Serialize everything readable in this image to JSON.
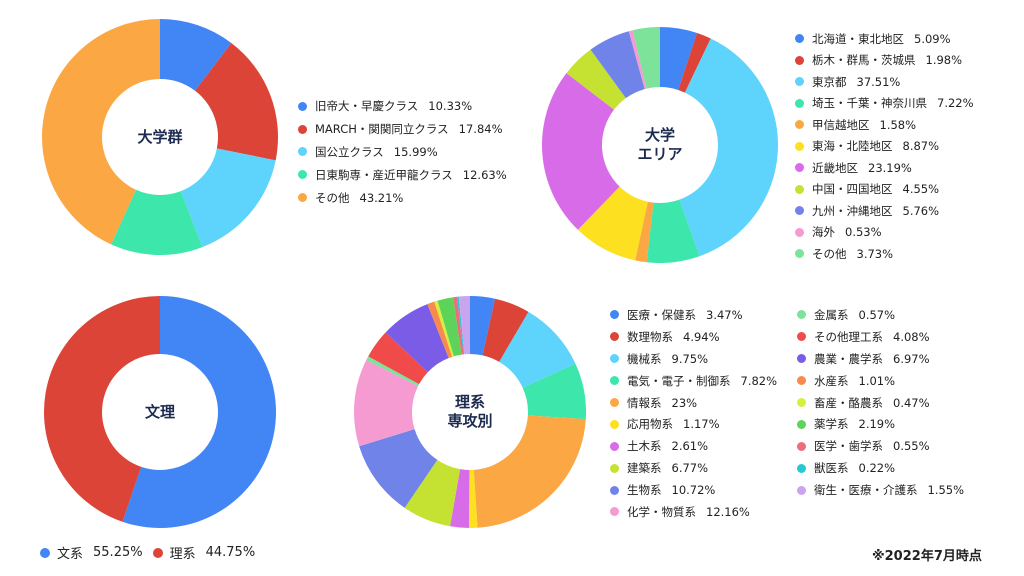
{
  "chart_data": [
    {
      "type": "pie",
      "variant": "donut",
      "title": "大学群",
      "center_label": [
        "大学群"
      ],
      "categories": [
        "旧帝大・早慶クラス",
        "MARCH・関関同立クラス",
        "国公立クラス",
        "日東駒専・産近甲龍クラス",
        "その他"
      ],
      "values": [
        10.33,
        17.84,
        15.99,
        12.63,
        43.21
      ],
      "value_labels": [
        "10.33%",
        "17.84%",
        "15.99%",
        "12.63%",
        "43.21%"
      ],
      "colors": [
        "#4285f4",
        "#db4437",
        "#5ed3fb",
        "#3de6aa",
        "#fba744"
      ],
      "legend_position": "right"
    },
    {
      "type": "pie",
      "variant": "donut",
      "title": "大学エリア",
      "center_label": [
        "大学",
        "エリア"
      ],
      "categories": [
        "北海道・東北地区",
        "栃木・群馬・茨城県",
        "東京都",
        "埼玉・千葉・神奈川県",
        "甲信越地区",
        "東海・北陸地区",
        "近畿地区",
        "中国・四国地区",
        "九州・沖縄地区",
        "海外",
        "その他"
      ],
      "values": [
        5.09,
        1.98,
        37.51,
        7.22,
        1.58,
        8.87,
        23.19,
        4.55,
        5.76,
        0.53,
        3.73
      ],
      "value_labels": [
        "5.09%",
        "1.98%",
        "37.51%",
        "7.22%",
        "1.58%",
        "8.87%",
        "23.19%",
        "4.55%",
        "5.76%",
        "0.53%",
        "3.73%"
      ],
      "colors": [
        "#4285f4",
        "#db4437",
        "#5ed3fb",
        "#3de6aa",
        "#fba744",
        "#fde020",
        "#d86ce8",
        "#c5e232",
        "#7083e8",
        "#f59bd2",
        "#7de39a"
      ],
      "legend_position": "right"
    },
    {
      "type": "pie",
      "variant": "donut",
      "title": "文理",
      "center_label": [
        "文理"
      ],
      "categories": [
        "文系",
        "理系"
      ],
      "values": [
        55.25,
        44.75
      ],
      "value_labels": [
        "55.25%",
        "44.75%"
      ],
      "colors": [
        "#4285f4",
        "#db4437"
      ],
      "legend_position": "bottom"
    },
    {
      "type": "pie",
      "variant": "donut",
      "title": "理系専攻別",
      "center_label": [
        "理系",
        "専攻別"
      ],
      "categories": [
        "医療・保健系",
        "数理物系",
        "機械系",
        "電気・電子・制御系",
        "情報系",
        "応用物系",
        "土木系",
        "建築系",
        "生物系",
        "化学・物質系",
        "金属系",
        "その他理工系",
        "農業・農学系",
        "水産系",
        "畜産・酪農系",
        "薬学系",
        "医学・歯学系",
        "獣医系",
        "衛生・医療・介護系"
      ],
      "values": [
        3.47,
        4.94,
        9.75,
        7.82,
        23,
        1.17,
        2.61,
        6.77,
        10.72,
        12.16,
        0.57,
        4.08,
        6.97,
        1.01,
        0.47,
        2.19,
        0.55,
        0.22,
        1.55
      ],
      "value_labels": [
        "3.47%",
        "4.94%",
        "9.75%",
        "7.82%",
        "23%",
        "1.17%",
        "2.61%",
        "6.77%",
        "10.72%",
        "12.16%",
        "0.57%",
        "4.08%",
        "6.97%",
        "1.01%",
        "0.47%",
        "2.19%",
        "0.55%",
        "0.22%",
        "1.55%"
      ],
      "colors": [
        "#4285f4",
        "#db4437",
        "#5ed3fb",
        "#3de6aa",
        "#fba744",
        "#fde020",
        "#d86ce8",
        "#c5e232",
        "#7083e8",
        "#f59bd2",
        "#7de39a",
        "#f04a4a",
        "#7b5ce6",
        "#f98a4e",
        "#d6ef3a",
        "#5dd35a",
        "#ef6b7e",
        "#27c7d3",
        "#c9a5f0"
      ],
      "legend_position": "right"
    }
  ],
  "footnote": "※2022年7月時点"
}
